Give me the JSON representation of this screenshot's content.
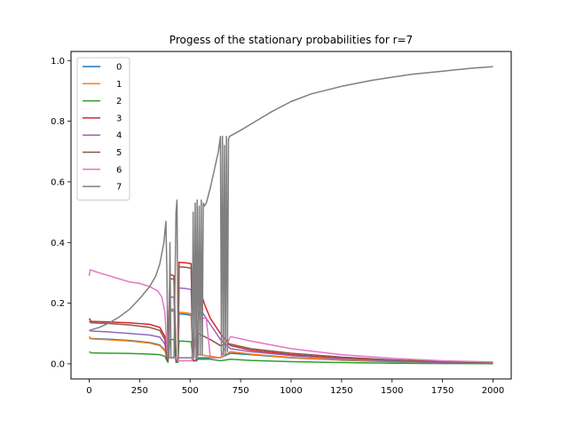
{
  "chart_data": {
    "type": "line",
    "title": "Progess of the stationary probabilities for r=7",
    "xlabel": "",
    "ylabel": "",
    "xlim": [
      -90,
      2090
    ],
    "ylim": [
      -0.05,
      1.03
    ],
    "xticks": [
      0,
      250,
      500,
      750,
      1000,
      1250,
      1500,
      1750,
      2000
    ],
    "yticks": [
      0.0,
      0.2,
      0.4,
      0.6,
      0.8,
      1.0
    ],
    "ytick_labels": [
      "0.0",
      "0.2",
      "0.4",
      "0.6",
      "0.8",
      "1.0"
    ],
    "grid": false,
    "legend_position": "top-left",
    "series": [
      {
        "name": "0",
        "color": "#1f77b4",
        "points": [
          [
            0,
            0.085
          ],
          [
            10,
            0.083
          ],
          [
            100,
            0.081
          ],
          [
            200,
            0.077
          ],
          [
            300,
            0.07
          ],
          [
            350,
            0.062
          ],
          [
            375,
            0.045
          ],
          [
            385,
            0.02
          ],
          [
            390,
            0.01
          ],
          [
            400,
            0.175
          ],
          [
            420,
            0.175
          ],
          [
            430,
            0.01
          ],
          [
            440,
            0.01
          ],
          [
            445,
            0.165
          ],
          [
            480,
            0.163
          ],
          [
            505,
            0.16
          ],
          [
            515,
            0.01
          ],
          [
            530,
            0.01
          ],
          [
            540,
            0.02
          ],
          [
            600,
            0.02
          ],
          [
            650,
            0.02
          ],
          [
            700,
            0.035
          ],
          [
            800,
            0.03
          ],
          [
            1000,
            0.02
          ],
          [
            1250,
            0.012
          ],
          [
            1500,
            0.007
          ],
          [
            1750,
            0.004
          ],
          [
            2000,
            0.002
          ]
        ]
      },
      {
        "name": "1",
        "color": "#ff7f0e",
        "points": [
          [
            0,
            0.09
          ],
          [
            10,
            0.082
          ],
          [
            100,
            0.079
          ],
          [
            200,
            0.075
          ],
          [
            300,
            0.068
          ],
          [
            350,
            0.06
          ],
          [
            375,
            0.042
          ],
          [
            385,
            0.02
          ],
          [
            390,
            0.01
          ],
          [
            400,
            0.18
          ],
          [
            420,
            0.18
          ],
          [
            430,
            0.01
          ],
          [
            440,
            0.01
          ],
          [
            445,
            0.17
          ],
          [
            480,
            0.168
          ],
          [
            505,
            0.165
          ],
          [
            515,
            0.01
          ],
          [
            530,
            0.01
          ],
          [
            540,
            0.03
          ],
          [
            600,
            0.025
          ],
          [
            650,
            0.02
          ],
          [
            700,
            0.04
          ],
          [
            800,
            0.032
          ],
          [
            1000,
            0.021
          ],
          [
            1250,
            0.013
          ],
          [
            1500,
            0.008
          ],
          [
            1750,
            0.004
          ],
          [
            2000,
            0.002
          ]
        ]
      },
      {
        "name": "2",
        "color": "#2ca02c",
        "points": [
          [
            0,
            0.04
          ],
          [
            10,
            0.036
          ],
          [
            100,
            0.035
          ],
          [
            200,
            0.034
          ],
          [
            300,
            0.032
          ],
          [
            350,
            0.03
          ],
          [
            375,
            0.025
          ],
          [
            385,
            0.01
          ],
          [
            390,
            0.005
          ],
          [
            400,
            0.08
          ],
          [
            420,
            0.08
          ],
          [
            430,
            0.005
          ],
          [
            440,
            0.005
          ],
          [
            445,
            0.075
          ],
          [
            480,
            0.074
          ],
          [
            505,
            0.073
          ],
          [
            515,
            0.01
          ],
          [
            530,
            0.01
          ],
          [
            540,
            0.015
          ],
          [
            600,
            0.015
          ],
          [
            650,
            0.01
          ],
          [
            700,
            0.015
          ],
          [
            800,
            0.011
          ],
          [
            1000,
            0.007
          ],
          [
            1250,
            0.004
          ],
          [
            1500,
            0.002
          ],
          [
            1750,
            0.001
          ],
          [
            2000,
            0.0005
          ]
        ]
      },
      {
        "name": "3",
        "color": "#d62728",
        "points": [
          [
            0,
            0.15
          ],
          [
            10,
            0.14
          ],
          [
            100,
            0.138
          ],
          [
            200,
            0.135
          ],
          [
            300,
            0.13
          ],
          [
            350,
            0.12
          ],
          [
            375,
            0.09
          ],
          [
            385,
            0.02
          ],
          [
            390,
            0.01
          ],
          [
            400,
            0.295
          ],
          [
            420,
            0.29
          ],
          [
            430,
            0.01
          ],
          [
            440,
            0.01
          ],
          [
            445,
            0.335
          ],
          [
            480,
            0.333
          ],
          [
            505,
            0.33
          ],
          [
            515,
            0.01
          ],
          [
            530,
            0.01
          ],
          [
            540,
            0.15
          ],
          [
            560,
            0.22
          ],
          [
            575,
            0.19
          ],
          [
            600,
            0.15
          ],
          [
            650,
            0.1
          ],
          [
            700,
            0.06
          ],
          [
            800,
            0.045
          ],
          [
            1000,
            0.03
          ],
          [
            1250,
            0.018
          ],
          [
            1500,
            0.01
          ],
          [
            1750,
            0.006
          ],
          [
            2000,
            0.003
          ]
        ]
      },
      {
        "name": "4",
        "color": "#9467bd",
        "points": [
          [
            0,
            0.11
          ],
          [
            10,
            0.108
          ],
          [
            100,
            0.105
          ],
          [
            200,
            0.1
          ],
          [
            300,
            0.095
          ],
          [
            350,
            0.088
          ],
          [
            375,
            0.065
          ],
          [
            385,
            0.02
          ],
          [
            390,
            0.01
          ],
          [
            400,
            0.22
          ],
          [
            420,
            0.22
          ],
          [
            430,
            0.01
          ],
          [
            440,
            0.01
          ],
          [
            445,
            0.25
          ],
          [
            480,
            0.248
          ],
          [
            505,
            0.245
          ],
          [
            515,
            0.01
          ],
          [
            530,
            0.01
          ],
          [
            540,
            0.16
          ],
          [
            560,
            0.17
          ],
          [
            600,
            0.13
          ],
          [
            650,
            0.08
          ],
          [
            700,
            0.05
          ],
          [
            800,
            0.04
          ],
          [
            1000,
            0.027
          ],
          [
            1250,
            0.016
          ],
          [
            1500,
            0.009
          ],
          [
            1750,
            0.005
          ],
          [
            2000,
            0.003
          ]
        ]
      },
      {
        "name": "5",
        "color": "#8c564b",
        "points": [
          [
            0,
            0.14
          ],
          [
            10,
            0.135
          ],
          [
            100,
            0.133
          ],
          [
            200,
            0.128
          ],
          [
            300,
            0.12
          ],
          [
            350,
            0.11
          ],
          [
            375,
            0.08
          ],
          [
            385,
            0.02
          ],
          [
            390,
            0.01
          ],
          [
            400,
            0.28
          ],
          [
            420,
            0.28
          ],
          [
            430,
            0.01
          ],
          [
            440,
            0.01
          ],
          [
            445,
            0.32
          ],
          [
            480,
            0.318
          ],
          [
            505,
            0.315
          ],
          [
            515,
            0.01
          ],
          [
            530,
            0.01
          ],
          [
            540,
            0.1
          ],
          [
            600,
            0.08
          ],
          [
            650,
            0.06
          ],
          [
            700,
            0.065
          ],
          [
            800,
            0.05
          ],
          [
            1000,
            0.035
          ],
          [
            1250,
            0.022
          ],
          [
            1500,
            0.013
          ],
          [
            1750,
            0.007
          ],
          [
            2000,
            0.004
          ]
        ]
      },
      {
        "name": "6",
        "color": "#e377c2",
        "points": [
          [
            0,
            0.29
          ],
          [
            5,
            0.31
          ],
          [
            50,
            0.3
          ],
          [
            100,
            0.29
          ],
          [
            150,
            0.28
          ],
          [
            200,
            0.27
          ],
          [
            250,
            0.265
          ],
          [
            300,
            0.255
          ],
          [
            340,
            0.24
          ],
          [
            360,
            0.22
          ],
          [
            375,
            0.17
          ],
          [
            385,
            0.05
          ],
          [
            390,
            0.02
          ],
          [
            430,
            0.02
          ],
          [
            440,
            0.01
          ],
          [
            505,
            0.01
          ],
          [
            515,
            0.02
          ],
          [
            540,
            0.15
          ],
          [
            580,
            0.15
          ],
          [
            600,
            0.02
          ],
          [
            650,
            0.02
          ],
          [
            700,
            0.09
          ],
          [
            800,
            0.075
          ],
          [
            1000,
            0.05
          ],
          [
            1250,
            0.03
          ],
          [
            1500,
            0.018
          ],
          [
            1750,
            0.01
          ],
          [
            2000,
            0.006
          ]
        ]
      },
      {
        "name": "7",
        "color": "#7f7f7f",
        "points": [
          [
            0,
            0.11
          ],
          [
            50,
            0.12
          ],
          [
            100,
            0.135
          ],
          [
            150,
            0.155
          ],
          [
            200,
            0.18
          ],
          [
            250,
            0.215
          ],
          [
            300,
            0.255
          ],
          [
            330,
            0.29
          ],
          [
            350,
            0.33
          ],
          [
            370,
            0.4
          ],
          [
            380,
            0.47
          ],
          [
            385,
            0.3
          ],
          [
            390,
            0.02
          ],
          [
            395,
            0.02
          ],
          [
            400,
            0.4
          ],
          [
            405,
            0.02
          ],
          [
            420,
            0.02
          ],
          [
            430,
            0.5
          ],
          [
            435,
            0.54
          ],
          [
            440,
            0.02
          ],
          [
            445,
            0.02
          ],
          [
            450,
            0.02
          ],
          [
            500,
            0.02
          ],
          [
            510,
            0.02
          ],
          [
            515,
            0.5
          ],
          [
            520,
            0.02
          ],
          [
            525,
            0.53
          ],
          [
            530,
            0.02
          ],
          [
            535,
            0.54
          ],
          [
            540,
            0.03
          ],
          [
            545,
            0.52
          ],
          [
            550,
            0.03
          ],
          [
            555,
            0.54
          ],
          [
            560,
            0.03
          ],
          [
            565,
            0.53
          ],
          [
            570,
            0.52
          ],
          [
            580,
            0.53
          ],
          [
            600,
            0.58
          ],
          [
            620,
            0.64
          ],
          [
            640,
            0.7
          ],
          [
            650,
            0.75
          ],
          [
            655,
            0.03
          ],
          [
            660,
            0.75
          ],
          [
            665,
            0.03
          ],
          [
            670,
            0.72
          ],
          [
            675,
            0.03
          ],
          [
            680,
            0.75
          ],
          [
            685,
            0.04
          ],
          [
            690,
            0.74
          ],
          [
            695,
            0.75
          ],
          [
            750,
            0.77
          ],
          [
            800,
            0.79
          ],
          [
            900,
            0.83
          ],
          [
            1000,
            0.865
          ],
          [
            1100,
            0.89
          ],
          [
            1250,
            0.915
          ],
          [
            1400,
            0.935
          ],
          [
            1500,
            0.945
          ],
          [
            1600,
            0.955
          ],
          [
            1750,
            0.965
          ],
          [
            1900,
            0.975
          ],
          [
            2000,
            0.98
          ]
        ]
      }
    ]
  }
}
